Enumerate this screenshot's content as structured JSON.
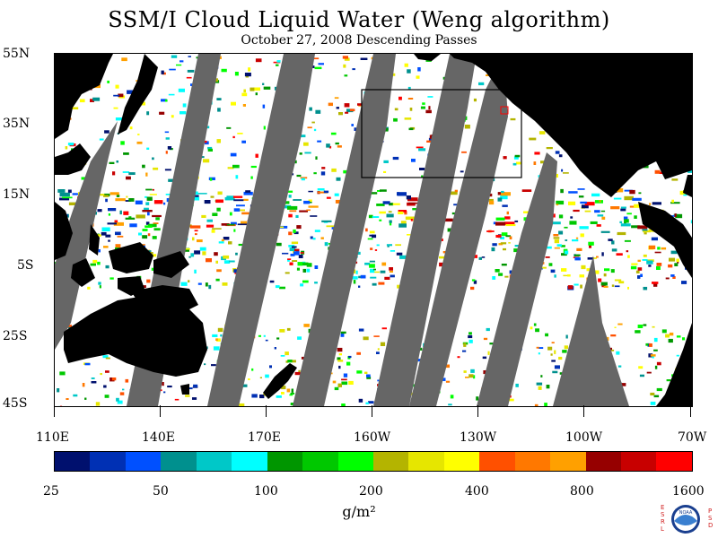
{
  "title": "SSM/I Cloud Liquid Water (Weng algorithm)",
  "subtitle": "October 27, 2008  Descending Passes",
  "y_labels": [
    "55N",
    "35N",
    "15N",
    "5S",
    "25S",
    "45S"
  ],
  "x_labels": [
    "110E",
    "140E",
    "170E",
    "160W",
    "130W",
    "100W",
    "70W"
  ],
  "colorbar": {
    "colors": [
      "#00106e",
      "#0030b4",
      "#0050ff",
      "#00908e",
      "#00c8c8",
      "#00ffff",
      "#009600",
      "#00c800",
      "#00ff00",
      "#b4b400",
      "#e6e600",
      "#ffff00",
      "#ff5000",
      "#ff7800",
      "#ffa000",
      "#960000",
      "#c80000",
      "#ff0000"
    ],
    "labels": [
      "25",
      "50",
      "100",
      "200",
      "400",
      "800",
      "1600"
    ]
  },
  "units": "g/m²",
  "logo": {
    "left_letters": "ESRL",
    "right_letters": "PSD",
    "center": "NOAA"
  },
  "colors": {
    "land": "#000000",
    "no_data": "#666666",
    "ocean": "#ffffff"
  }
}
